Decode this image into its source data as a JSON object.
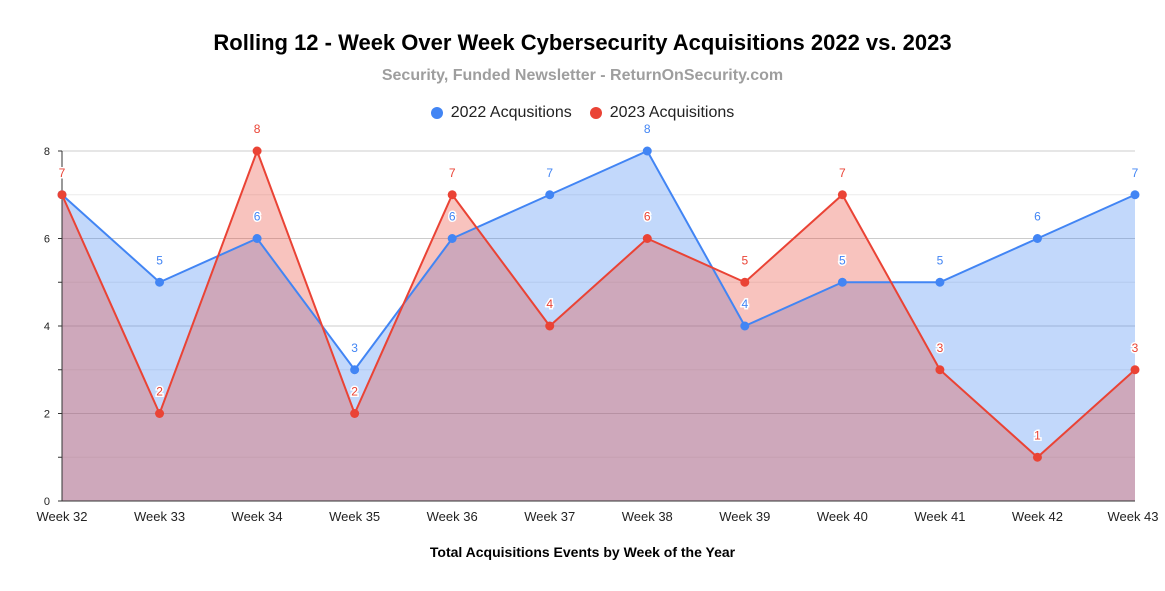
{
  "chart_data": {
    "type": "area",
    "title": "Rolling 12 - Week Over Week Cybersecurity Acquisitions 2022 vs. 2023",
    "subtitle": "Security, Funded Newsletter - ReturnOnSecurity.com",
    "xlabel": "Total Acquisitions Events by Week of the Year",
    "ylabel": "",
    "categories": [
      "Week 32",
      "Week 33",
      "Week 34",
      "Week 35",
      "Week 36",
      "Week 37",
      "Week 38",
      "Week 39",
      "Week 40",
      "Week 41",
      "Week 42",
      "Week 43"
    ],
    "ylim": [
      0,
      8
    ],
    "yticks": [
      "0",
      "2",
      "4",
      "6",
      "8"
    ],
    "grid": true,
    "legend_position": "top",
    "series": [
      {
        "name": "2022 Acqusitions",
        "color": "#4285f4",
        "fill": "rgba(66,133,244,0.32)",
        "values": [
          7,
          5,
          6,
          3,
          6,
          7,
          8,
          4,
          5,
          5,
          6,
          7
        ]
      },
      {
        "name": "2023 Acquisitions",
        "color": "#ea4335",
        "fill": "rgba(234,67,53,0.32)",
        "values": [
          7,
          2,
          8,
          2,
          7,
          4,
          6,
          5,
          7,
          3,
          1,
          3
        ]
      }
    ]
  }
}
